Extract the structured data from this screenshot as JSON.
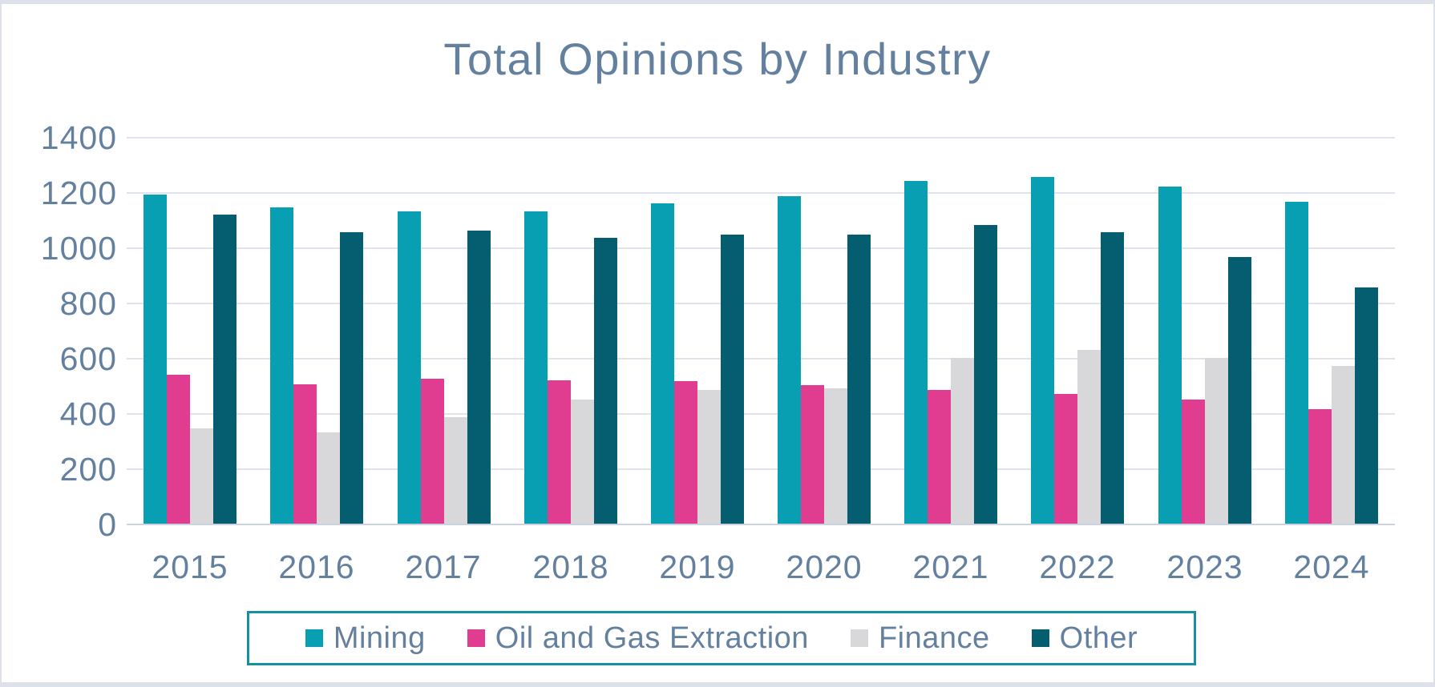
{
  "chart_data": {
    "type": "bar",
    "title": "Total Opinions by Industry",
    "categories": [
      "2015",
      "2016",
      "2017",
      "2018",
      "2019",
      "2020",
      "2021",
      "2022",
      "2023",
      "2024"
    ],
    "series": [
      {
        "name": "Mining",
        "color": "#089fb2",
        "values": [
          1190,
          1145,
          1130,
          1130,
          1160,
          1185,
          1240,
          1255,
          1220,
          1165
        ]
      },
      {
        "name": "Oil and Gas Extraction",
        "color": "#e03d90",
        "values": [
          540,
          505,
          525,
          520,
          515,
          500,
          485,
          470,
          450,
          415
        ]
      },
      {
        "name": "Finance",
        "color": "#d8d8da",
        "values": [
          345,
          330,
          385,
          450,
          485,
          490,
          600,
          630,
          600,
          570
        ]
      },
      {
        "name": "Other",
        "color": "#055e70",
        "values": [
          1120,
          1055,
          1060,
          1035,
          1045,
          1045,
          1080,
          1055,
          965,
          855
        ]
      }
    ],
    "ylim": [
      0,
      1400
    ],
    "ytick_step": 200,
    "grid": true,
    "legend_position": "bottom",
    "colors": {
      "text": "#64809f",
      "gridline": "#dfe3ed",
      "legend_border": "#1691a4",
      "frame_border": "#dce1ea"
    }
  }
}
